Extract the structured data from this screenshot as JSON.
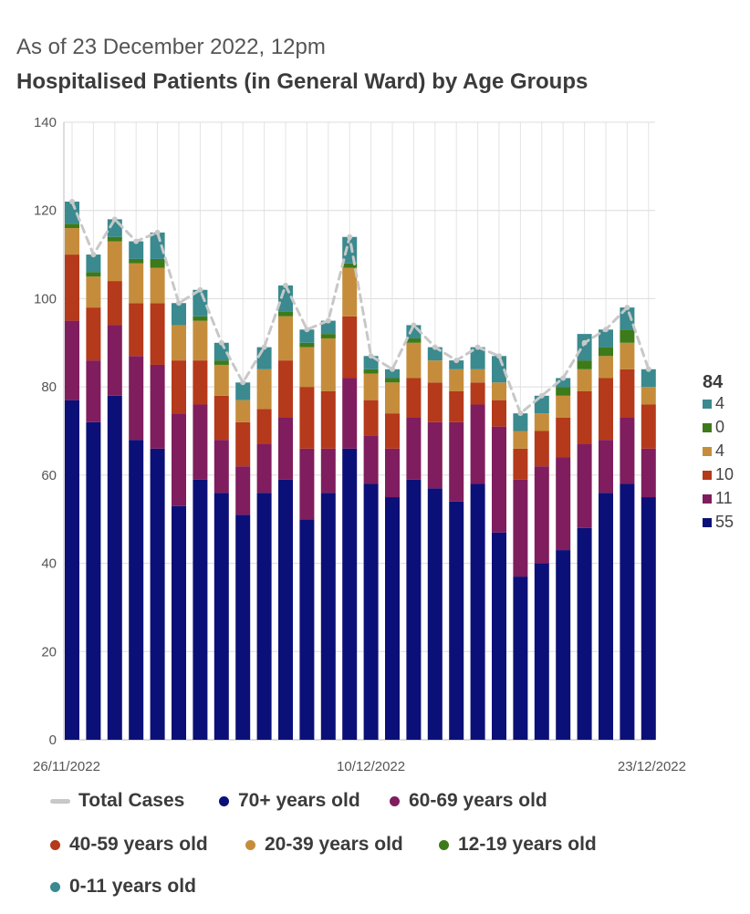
{
  "header": {
    "subtitle": "As of 23 December 2022, 12pm",
    "title": "Hospitalised Patients (in General Ward) by Age Groups"
  },
  "chart_data": {
    "type": "bar",
    "stacked": true,
    "ylim": [
      0,
      140
    ],
    "yticks": [
      0,
      20,
      40,
      60,
      80,
      100,
      120,
      140
    ],
    "x_tick_labels": [
      {
        "index": 0,
        "label": "26/11/2022"
      },
      {
        "index": 14,
        "label": "10/12/2022"
      },
      {
        "index": 27,
        "label": "23/12/2022"
      }
    ],
    "grid": true,
    "legend_position": "bottom",
    "series": [
      {
        "name": "70+ years old",
        "color": "#0b1078",
        "values": [
          77,
          72,
          78,
          68,
          66,
          53,
          59,
          56,
          51,
          56,
          59,
          50,
          56,
          66,
          58,
          55,
          59,
          57,
          54,
          58,
          47,
          37,
          40,
          43,
          48,
          56,
          58,
          55
        ]
      },
      {
        "name": "60-69 years old",
        "color": "#7f1d5e",
        "values": [
          18,
          14,
          16,
          19,
          19,
          21,
          17,
          12,
          11,
          11,
          14,
          16,
          10,
          16,
          11,
          11,
          14,
          15,
          18,
          18,
          24,
          22,
          22,
          21,
          19,
          12,
          15,
          11
        ]
      },
      {
        "name": "40-59 years old",
        "color": "#b5391b",
        "values": [
          15,
          12,
          10,
          12,
          14,
          12,
          10,
          10,
          10,
          8,
          13,
          14,
          13,
          14,
          8,
          8,
          9,
          9,
          7,
          5,
          6,
          7,
          8,
          9,
          12,
          14,
          11,
          10
        ]
      },
      {
        "name": "20-39 years old",
        "color": "#c58d3b",
        "values": [
          6,
          7,
          9,
          9,
          8,
          8,
          9,
          7,
          5,
          9,
          10,
          9,
          12,
          11,
          6,
          7,
          8,
          5,
          5,
          3,
          4,
          4,
          4,
          5,
          5,
          5,
          6,
          4
        ]
      },
      {
        "name": "12-19 years old",
        "color": "#3d7a1a",
        "values": [
          1,
          1,
          1,
          1,
          2,
          0,
          1,
          1,
          0,
          0,
          1,
          1,
          1,
          1,
          1,
          1,
          1,
          0,
          0,
          0,
          0,
          0,
          0,
          2,
          2,
          2,
          3,
          0
        ]
      },
      {
        "name": "0-11 years old",
        "color": "#3a8a8f",
        "values": [
          5,
          4,
          4,
          4,
          6,
          5,
          6,
          4,
          4,
          5,
          6,
          3,
          3,
          6,
          3,
          2,
          3,
          3,
          2,
          5,
          6,
          4,
          4,
          2,
          6,
          4,
          5,
          4
        ]
      }
    ],
    "total_series": {
      "name": "Total Cases",
      "color": "#c8c8c8",
      "values": [
        122,
        110,
        118,
        113,
        115,
        99,
        102,
        90,
        81,
        89,
        103,
        93,
        95,
        114,
        87,
        84,
        94,
        89,
        86,
        89,
        87,
        74,
        78,
        82,
        90,
        93,
        98,
        84
      ]
    },
    "end_labels": {
      "total": "84",
      "values": [
        "4",
        "0",
        "4",
        "10",
        "11",
        "55"
      ]
    }
  },
  "legend": [
    {
      "label": "Total Cases",
      "color": "#c8c8c8",
      "shape": "line"
    },
    {
      "label": "70+ years old",
      "color": "#0b1078",
      "shape": "dot"
    },
    {
      "label": "60-69 years old",
      "color": "#7f1d5e",
      "shape": "dot"
    },
    {
      "label": "40-59 years old",
      "color": "#b5391b",
      "shape": "dot"
    },
    {
      "label": "20-39 years old",
      "color": "#c58d3b",
      "shape": "dot"
    },
    {
      "label": "12-19 years old",
      "color": "#3d7a1a",
      "shape": "dot"
    },
    {
      "label": "0-11 years old",
      "color": "#3a8a8f",
      "shape": "dot"
    }
  ]
}
